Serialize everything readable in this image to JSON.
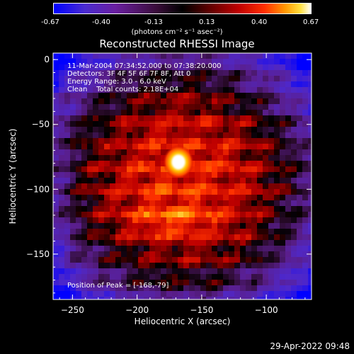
{
  "colorbar": {
    "ticks": [
      "-0.67",
      "-0.40",
      "-0.13",
      "0.13",
      "0.40",
      "0.67"
    ],
    "unit_label": "(photons cm⁻² s⁻¹ asec⁻²)",
    "min": -0.67,
    "max": 0.67
  },
  "chart_data": {
    "type": "heatmap",
    "title": "Reconstructed RHESSI Image",
    "xlabel": "Heliocentric X (arcsec)",
    "ylabel": "Heliocentric Y (arcsec)",
    "xlim": [
      -265,
      -65
    ],
    "ylim": [
      -185,
      5
    ],
    "xticks": [
      -250,
      -200,
      -150,
      -100
    ],
    "yticks": [
      0,
      -50,
      -100,
      -150
    ],
    "peak": {
      "x": -168,
      "y": -79
    },
    "annotations": {
      "time": "11-Mar-2004 07:34:52.000 to 07:38:20.000",
      "detectors": "Detectors: 3F 4F 5F 6F 7F 8F, Att 0",
      "energy": "Energy Range: 3.0 - 6.0 keV",
      "clean": "Clean    Total counts: 2.18E+04",
      "peak_label": "Position of Peak = [-168,-79]"
    }
  },
  "footer": {
    "date": "29-Apr-2022 09:48"
  }
}
